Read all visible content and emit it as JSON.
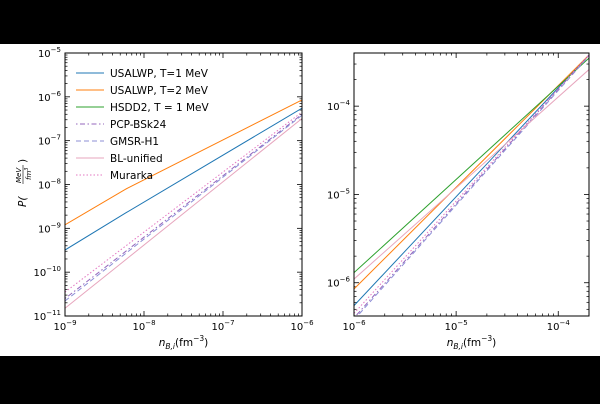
{
  "chart_data": [
    {
      "type": "line",
      "panel": "left",
      "xscale": "log",
      "yscale": "log",
      "xlim": [
        1e-09,
        1e-06
      ],
      "ylim": [
        1e-11,
        1e-05
      ],
      "xlabel_main": "n",
      "xlabel_sub": "B,i",
      "xlabel_units": "(fm",
      "xlabel_exp": "−3",
      "xlabel_close": ")",
      "ylabel_main": "P(",
      "ylabel_num": "MeV",
      "ylabel_den": "fm",
      "ylabel_den_exp": "3",
      "ylabel_close": ")",
      "xticks": [
        {
          "value": 1e-09,
          "base": "10",
          "exp": "−9"
        },
        {
          "value": 1e-08,
          "base": "10",
          "exp": "−8"
        },
        {
          "value": 1e-07,
          "base": "10",
          "exp": "−7"
        },
        {
          "value": 1e-06,
          "base": "10",
          "exp": "−6"
        }
      ],
      "yticks": [
        {
          "value": 1e-11,
          "base": "10",
          "exp": "−11"
        },
        {
          "value": 1e-10,
          "base": "10",
          "exp": "−10"
        },
        {
          "value": 1e-09,
          "base": "10",
          "exp": "−9"
        },
        {
          "value": 1e-08,
          "base": "10",
          "exp": "−8"
        },
        {
          "value": 1e-07,
          "base": "10",
          "exp": "−7"
        },
        {
          "value": 1e-06,
          "base": "10",
          "exp": "−6"
        },
        {
          "value": 1e-05,
          "base": "10",
          "exp": "−5"
        }
      ],
      "legend_location": "upper-left",
      "series": [
        {
          "name": "USALWP, T=1 MeV",
          "color": "#1f77b4",
          "dash": "",
          "x": [
            1e-09,
            6e-09,
            1e-06
          ],
          "y": [
            3.2e-10,
            2.3e-09,
            5.5e-07
          ]
        },
        {
          "name": "USALWP, T=2 MeV",
          "color": "#ff7f0e",
          "dash": "",
          "x": [
            1e-09,
            6e-09,
            1e-06
          ],
          "y": [
            1.2e-09,
            8e-09,
            8.5e-07
          ]
        },
        {
          "name": "HSDD2, T = 1 MeV",
          "color": "#2ca02c",
          "dash": "",
          "x": [],
          "y": []
        },
        {
          "name": "PCP-BSk24",
          "color": "#9467bd",
          "dash": "1.5,2.5,5,2.5",
          "x": [
            1e-09,
            1e-06
          ],
          "y": [
            2.5e-11,
            4e-07
          ]
        },
        {
          "name": "GMSR-H1",
          "color": "#8c8fd6",
          "dash": "5,3",
          "x": [
            1e-09,
            1e-06
          ],
          "y": [
            2.2e-11,
            3.8e-07
          ]
        },
        {
          "name": "BL-unified",
          "color": "#e7a5bd",
          "dash": "",
          "x": [
            1e-09,
            1e-06
          ],
          "y": [
            1.5e-11,
            3.2e-07
          ]
        },
        {
          "name": "Murarka",
          "color": "#e377c2",
          "dash": "1.5,2",
          "x": [
            1e-09,
            1e-06
          ],
          "y": [
            3.5e-11,
            4.5e-07
          ]
        }
      ]
    },
    {
      "type": "line",
      "panel": "right",
      "xscale": "log",
      "yscale": "log",
      "xlim": [
        1e-06,
        0.0002
      ],
      "ylim": [
        4.2e-07,
        0.0004
      ],
      "xlabel_main": "n",
      "xlabel_sub": "B,i",
      "xlabel_units": "(fm",
      "xlabel_exp": "−3",
      "xlabel_close": ")",
      "xticks": [
        {
          "value": 1e-06,
          "base": "10",
          "exp": "−6"
        },
        {
          "value": 1e-05,
          "base": "10",
          "exp": "−5"
        },
        {
          "value": 0.0001,
          "base": "10",
          "exp": "−4"
        }
      ],
      "yticks": [
        {
          "value": 1e-06,
          "base": "10",
          "exp": "−6"
        },
        {
          "value": 1e-05,
          "base": "10",
          "exp": "−5"
        },
        {
          "value": 0.0001,
          "base": "10",
          "exp": "−4"
        }
      ],
      "series": [
        {
          "name": "USALWP, T=1 MeV",
          "color": "#1f77b4",
          "dash": "",
          "x": [
            1e-06,
            0.0002
          ],
          "y": [
            5.5e-07,
            0.00038
          ]
        },
        {
          "name": "USALWP, T=2 MeV",
          "color": "#ff7f0e",
          "dash": "",
          "x": [
            1e-06,
            0.0002
          ],
          "y": [
            8.5e-07,
            0.00038
          ]
        },
        {
          "name": "HSDD2, T = 1 MeV",
          "color": "#2ca02c",
          "dash": "",
          "x": [
            1e-06,
            0.0002
          ],
          "y": [
            1.3e-06,
            0.00035
          ]
        },
        {
          "name": "PCP-BSk24",
          "color": "#9467bd",
          "dash": "1.5,2.5,5,2.5",
          "x": [
            1e-06,
            0.0002
          ],
          "y": [
            4e-07,
            0.00038
          ]
        },
        {
          "name": "GMSR-H1",
          "color": "#8c8fd6",
          "dash": "5,3",
          "x": [
            1e-06,
            0.0002
          ],
          "y": [
            3.8e-07,
            0.00037
          ]
        },
        {
          "name": "BL-unified",
          "color": "#e7a5bd",
          "dash": "",
          "x": [
            1e-06,
            0.0002
          ],
          "y": [
            1.1e-06,
            0.00026
          ]
        },
        {
          "name": "Murarka",
          "color": "#e377c2",
          "dash": "1.5,2",
          "x": [
            1e-06,
            0.0002
          ],
          "y": [
            4.5e-07,
            0.00038
          ]
        }
      ]
    }
  ]
}
